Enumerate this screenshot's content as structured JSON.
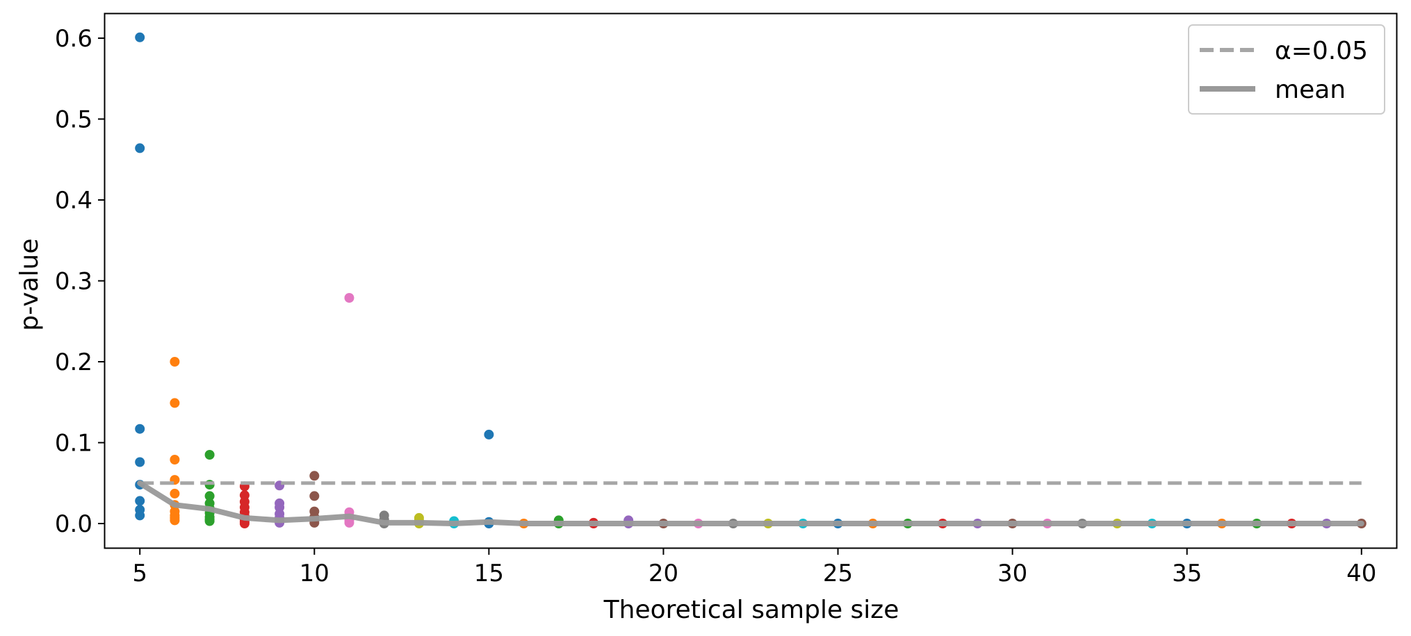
{
  "chart_data": {
    "type": "scatter",
    "title": "",
    "xlabel": "Theoretical sample size",
    "ylabel": "p-value",
    "xlim": [
      4,
      41
    ],
    "ylim": [
      -0.03,
      0.63
    ],
    "xticks": [
      5,
      10,
      15,
      20,
      25,
      30,
      35,
      40
    ],
    "xtick_labels": [
      "5",
      "10",
      "15",
      "20",
      "25",
      "30",
      "35",
      "40"
    ],
    "yticks": [
      0.0,
      0.1,
      0.2,
      0.3,
      0.4,
      0.5,
      0.6
    ],
    "ytick_labels": [
      "0.0",
      "0.1",
      "0.2",
      "0.3",
      "0.4",
      "0.5",
      "0.6"
    ],
    "grid": false,
    "legend_position": "top-right",
    "legend": [
      {
        "label": "α=0.05",
        "style": "dashed",
        "color": "#a6a6a6"
      },
      {
        "label": "mean",
        "style": "solid",
        "color": "#999999"
      }
    ],
    "alpha_line": {
      "y": 0.05,
      "color": "#a6a6a6"
    },
    "mean_line": {
      "color": "#999999",
      "x": [
        5,
        6,
        7,
        8,
        9,
        10,
        11,
        12,
        13,
        14,
        15,
        16,
        17,
        18,
        19,
        20,
        21,
        22,
        23,
        24,
        25,
        26,
        27,
        28,
        29,
        30,
        31,
        32,
        33,
        34,
        35,
        36,
        37,
        38,
        39,
        40
      ],
      "y": [
        0.05,
        0.023,
        0.018,
        0.007,
        0.004,
        0.006,
        0.009,
        0.001,
        0.001,
        0.0,
        0.002,
        0.0,
        0.0,
        0.0,
        0.0,
        0.0,
        0.0,
        0.0,
        0.0,
        0.0,
        0.0,
        0.0,
        0.0,
        0.0,
        0.0,
        0.0,
        0.0,
        0.0,
        0.0,
        0.0,
        0.0,
        0.0,
        0.0,
        0.0,
        0.0,
        0.0
      ]
    },
    "series": [
      {
        "x": 5,
        "color": "#1f77b4",
        "values": [
          0.601,
          0.464,
          0.117,
          0.076,
          0.048,
          0.028,
          0.017,
          0.01
        ]
      },
      {
        "x": 6,
        "color": "#ff7f0e",
        "values": [
          0.2,
          0.149,
          0.079,
          0.054,
          0.037,
          0.023,
          0.015,
          0.01,
          0.007,
          0.004
        ]
      },
      {
        "x": 7,
        "color": "#2ca02c",
        "values": [
          0.085,
          0.048,
          0.034,
          0.025,
          0.019,
          0.013,
          0.008,
          0.005,
          0.003
        ]
      },
      {
        "x": 8,
        "color": "#d62728",
        "values": [
          0.046,
          0.035,
          0.027,
          0.02,
          0.014,
          0.009,
          0.005,
          0.002,
          0.0
        ]
      },
      {
        "x": 9,
        "color": "#9467bd",
        "values": [
          0.047,
          0.025,
          0.02,
          0.012,
          0.007,
          0.003,
          0.001
        ]
      },
      {
        "x": 10,
        "color": "#8c564b",
        "values": [
          0.059,
          0.034,
          0.015,
          0.008,
          0.004,
          0.001
        ]
      },
      {
        "x": 11,
        "color": "#e377c2",
        "values": [
          0.279,
          0.014,
          0.009,
          0.004,
          0.001
        ]
      },
      {
        "x": 12,
        "color": "#7f7f7f",
        "values": [
          0.01,
          0.005,
          0.002,
          0.0
        ]
      },
      {
        "x": 13,
        "color": "#bcbd22",
        "values": [
          0.007,
          0.004,
          0.001,
          0.0
        ]
      },
      {
        "x": 14,
        "color": "#17becf",
        "values": [
          0.003,
          0.001,
          0.0
        ]
      },
      {
        "x": 15,
        "color": "#1f77b4",
        "values": [
          0.11,
          0.002,
          0.0
        ]
      },
      {
        "x": 16,
        "color": "#ff7f0e",
        "values": [
          0.0
        ]
      },
      {
        "x": 17,
        "color": "#2ca02c",
        "values": [
          0.004,
          0.001,
          0.0
        ]
      },
      {
        "x": 18,
        "color": "#d62728",
        "values": [
          0.001,
          0.0
        ]
      },
      {
        "x": 19,
        "color": "#9467bd",
        "values": [
          0.004,
          0.001,
          0.0
        ]
      },
      {
        "x": 20,
        "color": "#8c564b",
        "values": [
          0.0
        ]
      },
      {
        "x": 21,
        "color": "#e377c2",
        "values": [
          0.0
        ]
      },
      {
        "x": 22,
        "color": "#7f7f7f",
        "values": [
          0.0
        ]
      },
      {
        "x": 23,
        "color": "#bcbd22",
        "values": [
          0.0
        ]
      },
      {
        "x": 24,
        "color": "#17becf",
        "values": [
          0.0
        ]
      },
      {
        "x": 25,
        "color": "#1f77b4",
        "values": [
          0.0
        ]
      },
      {
        "x": 26,
        "color": "#ff7f0e",
        "values": [
          0.0
        ]
      },
      {
        "x": 27,
        "color": "#2ca02c",
        "values": [
          0.0
        ]
      },
      {
        "x": 28,
        "color": "#d62728",
        "values": [
          0.0
        ]
      },
      {
        "x": 29,
        "color": "#9467bd",
        "values": [
          0.0
        ]
      },
      {
        "x": 30,
        "color": "#8c564b",
        "values": [
          0.0
        ]
      },
      {
        "x": 31,
        "color": "#e377c2",
        "values": [
          0.0
        ]
      },
      {
        "x": 32,
        "color": "#7f7f7f",
        "values": [
          0.0
        ]
      },
      {
        "x": 33,
        "color": "#bcbd22",
        "values": [
          0.0
        ]
      },
      {
        "x": 34,
        "color": "#17becf",
        "values": [
          0.0
        ]
      },
      {
        "x": 35,
        "color": "#1f77b4",
        "values": [
          0.0
        ]
      },
      {
        "x": 36,
        "color": "#ff7f0e",
        "values": [
          0.0
        ]
      },
      {
        "x": 37,
        "color": "#2ca02c",
        "values": [
          0.0
        ]
      },
      {
        "x": 38,
        "color": "#d62728",
        "values": [
          0.0
        ]
      },
      {
        "x": 39,
        "color": "#9467bd",
        "values": [
          0.0
        ]
      },
      {
        "x": 40,
        "color": "#8c564b",
        "values": [
          0.0
        ]
      }
    ]
  }
}
